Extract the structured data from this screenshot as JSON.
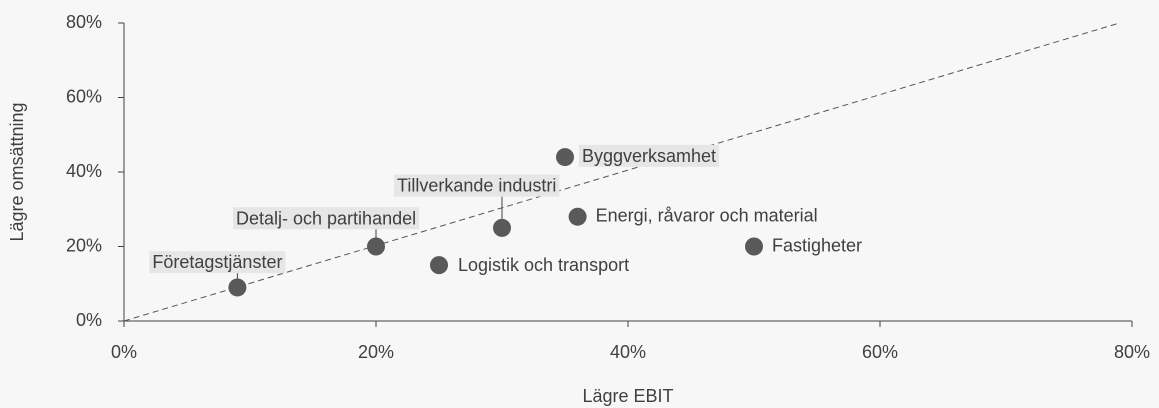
{
  "chart_data": {
    "type": "scatter",
    "x_label": "Lägre EBIT",
    "y_label": "Lägre omsättning",
    "xlim": [
      0,
      80
    ],
    "ylim": [
      0,
      80
    ],
    "xticks": [
      {
        "value": 0,
        "label": "0%"
      },
      {
        "value": 20,
        "label": "20%"
      },
      {
        "value": 40,
        "label": "40%"
      },
      {
        "value": 60,
        "label": "60%"
      },
      {
        "value": 80,
        "label": "80%"
      }
    ],
    "yticks": [
      {
        "value": 0,
        "label": "0%"
      },
      {
        "value": 20,
        "label": "20%"
      },
      {
        "value": 40,
        "label": "40%"
      },
      {
        "value": 60,
        "label": "60%"
      },
      {
        "value": 80,
        "label": "80%"
      }
    ],
    "color": "#595959",
    "points": {
      "labels": [
        "Företagstjänster",
        "Detalj- och partihandel",
        "Logistik och transport",
        "Tillverkande industri",
        "Byggverksamhet",
        "Energi, råvaror och material",
        "Fastigheter"
      ],
      "x": [
        9,
        20,
        25,
        30,
        35,
        36,
        50
      ],
      "y": [
        9,
        20,
        15,
        25,
        44,
        28,
        20
      ]
    },
    "reference_line": {
      "x": [
        0,
        79
      ],
      "y": [
        0,
        80
      ]
    }
  }
}
